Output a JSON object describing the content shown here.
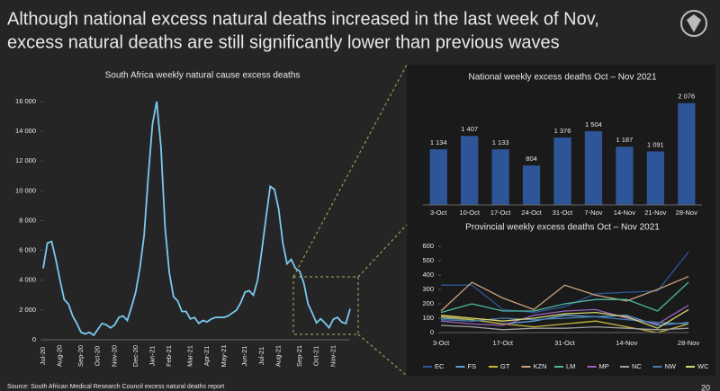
{
  "header": {
    "title": [
      "Although national excess natural deaths increased in the last week of Nov,",
      "excess natural deaths are still significantly lower than previous waves"
    ]
  },
  "chart_data": [
    {
      "type": "line",
      "title": "South Africa weekly natural cause excess deaths",
      "color": "#7cc8f0",
      "categories": [
        "Jul-20",
        null,
        null,
        null,
        "Aug-20",
        null,
        null,
        null,
        null,
        "Sep-20",
        null,
        null,
        null,
        "Oct-20",
        null,
        null,
        null,
        "Nov-20",
        null,
        null,
        null,
        null,
        "Dec-20",
        null,
        null,
        null,
        "Jan-21",
        null,
        null,
        null,
        "Feb-21",
        null,
        null,
        null,
        null,
        "Mar-21",
        null,
        null,
        null,
        "Apr-21",
        null,
        null,
        null,
        "May-21",
        null,
        null,
        null,
        null,
        "Jun-21",
        null,
        null,
        null,
        "Jul-21",
        null,
        null,
        null,
        "Aug-21",
        null,
        null,
        null,
        null,
        "Sep-21",
        null,
        null,
        null,
        "Oct-21",
        null,
        null,
        null,
        "Nov-21",
        null,
        null,
        null,
        null
      ],
      "values": [
        4800,
        6500,
        6600,
        5400,
        4000,
        2700,
        2400,
        1600,
        1100,
        500,
        400,
        500,
        300,
        700,
        1100,
        1000,
        800,
        1000,
        1500,
        1600,
        1300,
        2200,
        3200,
        4800,
        7000,
        11000,
        14500,
        16000,
        13000,
        7500,
        4500,
        2900,
        2600,
        1900,
        1900,
        1400,
        1500,
        1100,
        1300,
        1200,
        1400,
        1500,
        1500,
        1500,
        1600,
        1800,
        2000,
        2500,
        3200,
        3300,
        3000,
        4000,
        6000,
        8200,
        10300,
        10100,
        8800,
        6500,
        5100,
        5400,
        4800,
        4600,
        3800,
        2400,
        1800,
        1134,
        1407,
        1133,
        804,
        1376,
        1504,
        1187,
        1091,
        2076
      ],
      "ylim": [
        0,
        16000
      ],
      "yticks": [
        0,
        {
          "value": 2000,
          "label": "2 000"
        },
        {
          "value": 4000,
          "label": "4 000"
        },
        {
          "value": 6000,
          "label": "6 000"
        },
        {
          "value": 8000,
          "label": "8 000"
        },
        {
          "value": 10000,
          "label": "10 000"
        },
        {
          "value": 12000,
          "label": "12 000"
        },
        {
          "value": 14000,
          "label": "14 000"
        },
        {
          "value": 16000,
          "label": "16 000"
        }
      ]
    },
    {
      "type": "bar",
      "title": "National weekly excess deaths Oct – Nov 2021",
      "color": "#2e5597",
      "categories": [
        "3-Oct",
        "10-Oct",
        "17-Oct",
        "24-Oct",
        "31-Oct",
        "7-Nov",
        "14-Nov",
        "21-Nov",
        "28-Nov"
      ],
      "values": [
        1134,
        1407,
        1133,
        804,
        1376,
        1504,
        1187,
        1091,
        2076
      ],
      "value_labels": [
        "1 134",
        "1 407",
        "1 133",
        "804",
        "1 376",
        "1 504",
        "1 187",
        "1 091",
        "2 076"
      ],
      "ylim": [
        0,
        2200
      ]
    },
    {
      "type": "line",
      "title": "Provincial weekly excess deaths Oct – Nov 2021",
      "categories": [
        "3-Oct",
        null,
        "17-Oct",
        null,
        "31-Oct",
        null,
        "14-Nov",
        null,
        "28-Nov"
      ],
      "series": [
        {
          "name": "EC",
          "color": "#2e5597",
          "values": [
            330,
            330,
            160,
            140,
            180,
            270,
            280,
            290,
            560
          ]
        },
        {
          "name": "FS",
          "color": "#5aa0d8",
          "values": [
            100,
            90,
            60,
            80,
            120,
            110,
            120,
            50,
            70
          ]
        },
        {
          "name": "GT",
          "color": "#c8b43c",
          "values": [
            110,
            90,
            60,
            40,
            60,
            80,
            40,
            0,
            60
          ]
        },
        {
          "name": "KZN",
          "color": "#c8a07c",
          "values": [
            150,
            350,
            240,
            160,
            330,
            260,
            220,
            300,
            390
          ]
        },
        {
          "name": "LM",
          "color": "#4db8a0",
          "values": [
            140,
            200,
            150,
            150,
            200,
            230,
            230,
            150,
            350
          ]
        },
        {
          "name": "MP",
          "color": "#9b5fc0",
          "values": [
            80,
            60,
            50,
            120,
            150,
            160,
            100,
            60,
            190
          ]
        },
        {
          "name": "NC",
          "color": "#a0a0a0",
          "values": [
            50,
            40,
            20,
            30,
            30,
            40,
            30,
            20,
            30
          ]
        },
        {
          "name": "NW",
          "color": "#4a7fb0",
          "values": [
            90,
            80,
            100,
            90,
            100,
            110,
            90,
            70,
            60
          ]
        },
        {
          "name": "WC",
          "color": "#d8d870",
          "values": [
            120,
            100,
            80,
            100,
            130,
            140,
            110,
            30,
            160
          ]
        }
      ],
      "ylim": [
        0,
        600
      ],
      "yticks": [
        0,
        100,
        200,
        300,
        400,
        500,
        600
      ]
    }
  ],
  "footer": {
    "source": "Source: South African Medical Research Council excess natural deaths report",
    "page": 20
  }
}
